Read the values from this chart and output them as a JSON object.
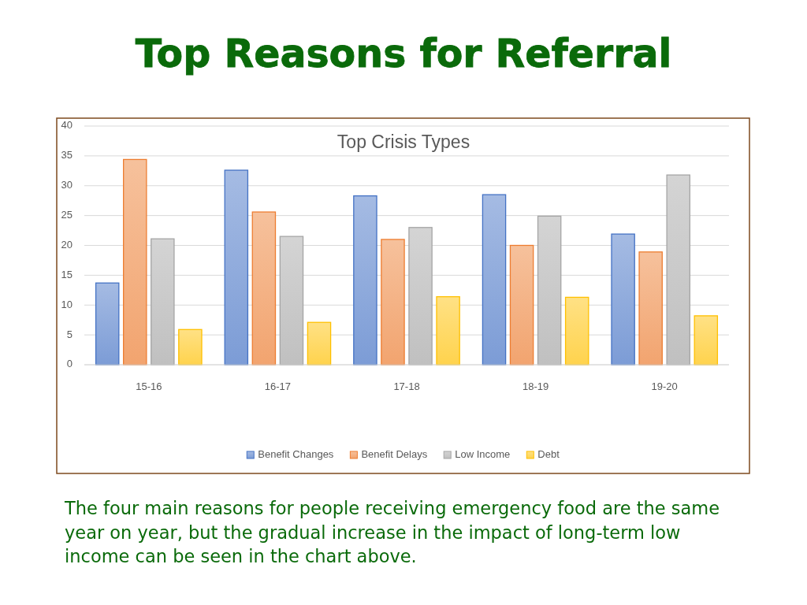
{
  "chart_data": {
    "type": "bar",
    "title": "Top Reasons for Referral",
    "subtitle": "Top Crisis Types",
    "categories": [
      "15-16",
      "16-17",
      "17-18",
      "18-19",
      "19-20"
    ],
    "series": [
      {
        "name": "Benefit Changes",
        "color": "#4472c4",
        "values": [
          13.7,
          32.6,
          28.3,
          28.5,
          21.9
        ]
      },
      {
        "name": "Benefit Delays",
        "color": "#ed7d31",
        "values": [
          34.4,
          25.6,
          21.0,
          20.0,
          18.9
        ]
      },
      {
        "name": "Low Income",
        "color": "#a5a5a5",
        "values": [
          21.1,
          21.5,
          23.0,
          24.9,
          31.8
        ]
      },
      {
        "name": "Debt",
        "color": "#ffc000",
        "values": [
          5.9,
          7.1,
          11.4,
          11.3,
          8.2
        ]
      }
    ],
    "ylim": [
      0,
      40
    ],
    "yticks": [
      0,
      5,
      10,
      15,
      20,
      25,
      30,
      35,
      40
    ],
    "grid": "y",
    "legend": "bottom",
    "annotations": [
      "The four main reasons for people receiving emergency food are the same year on year, but the gradual increase in the impact of long-term low income can be seen in the chart above."
    ]
  }
}
